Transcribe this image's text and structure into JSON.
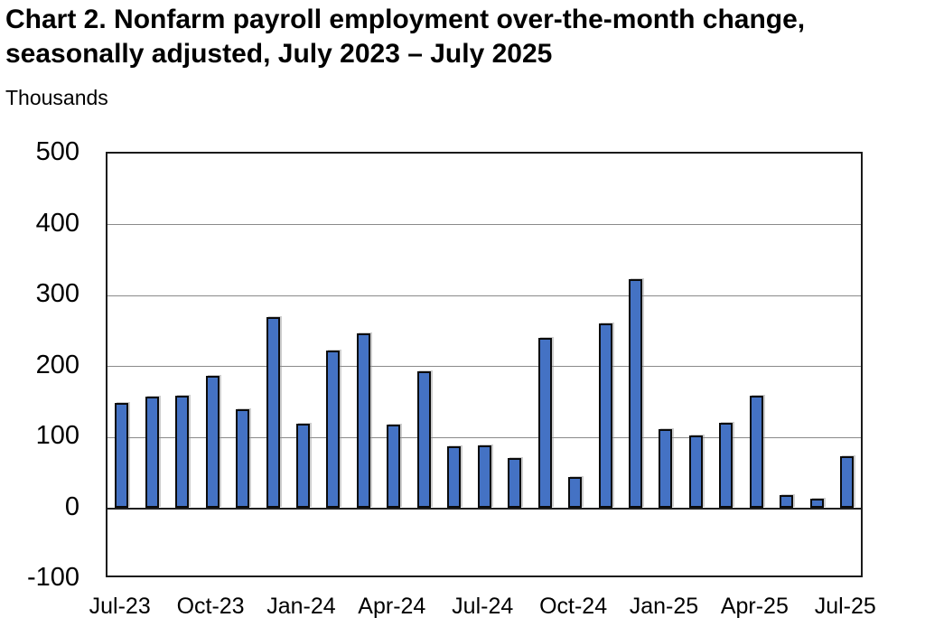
{
  "header": {
    "title_line1": "Chart 2. Nonfarm payroll employment over-the-month change,",
    "title_line2": "seasonally adjusted, July 2023 – July 2025",
    "units_label": "Thousands"
  },
  "chart_data": {
    "type": "bar",
    "title": "Chart 2. Nonfarm payroll employment over-the-month change, seasonally adjusted, July 2023 – July 2025",
    "ylabel": "Thousands",
    "xlabel": "",
    "categories": [
      "Jul-23",
      "Aug-23",
      "Sep-23",
      "Oct-23",
      "Nov-23",
      "Dec-23",
      "Jan-24",
      "Feb-24",
      "Mar-24",
      "Apr-24",
      "May-24",
      "Jun-24",
      "Jul-24",
      "Aug-24",
      "Sep-24",
      "Oct-24",
      "Nov-24",
      "Dec-24",
      "Jan-25",
      "Feb-25",
      "Mar-25",
      "Apr-25",
      "May-25",
      "Jun-25",
      "Jul-25"
    ],
    "values": [
      148,
      157,
      158,
      186,
      140,
      269,
      119,
      222,
      246,
      118,
      193,
      87,
      88,
      71,
      240,
      44,
      261,
      323,
      111,
      102,
      120,
      158,
      19,
      14,
      73
    ],
    "x_tick_labels": [
      "Jul-23",
      "Oct-23",
      "Jan-24",
      "Apr-24",
      "Jul-24",
      "Oct-24",
      "Jan-25",
      "Apr-25",
      "Jul-25"
    ],
    "x_tick_indices": [
      0,
      3,
      6,
      9,
      12,
      15,
      18,
      21,
      24
    ],
    "y_ticks": [
      500,
      400,
      300,
      200,
      100,
      0,
      -100
    ],
    "ylim": [
      -100,
      500
    ],
    "grid": "horizontal",
    "legend_position": "none",
    "bar_color": "#4472C4",
    "bar_border_color": "#0b0b0b",
    "gridline_color": "#8a8a8a",
    "axis_color": "#1a1a1a"
  }
}
